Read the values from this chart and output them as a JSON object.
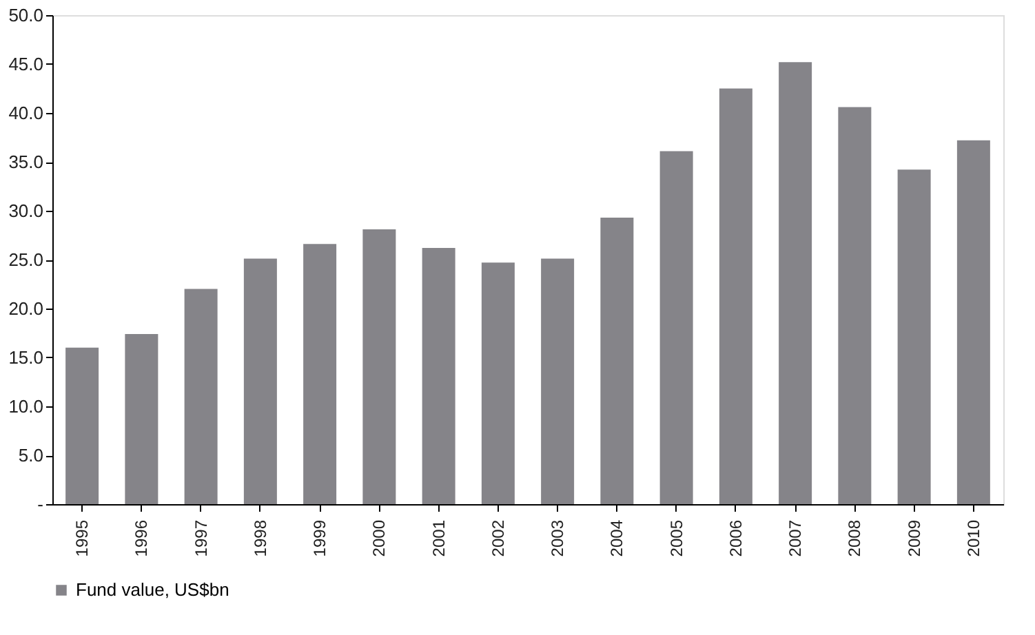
{
  "chart_data": {
    "type": "bar",
    "categories": [
      "1995",
      "1996",
      "1997",
      "1998",
      "1999",
      "2000",
      "2001",
      "2002",
      "2003",
      "2004",
      "2005",
      "2006",
      "2007",
      "2008",
      "2009",
      "2010"
    ],
    "series": [
      {
        "name": "Fund value, US$bn",
        "color": "#858489",
        "values": [
          16.0,
          17.4,
          22.0,
          25.1,
          26.6,
          28.1,
          26.2,
          24.7,
          25.1,
          29.3,
          36.1,
          42.5,
          45.2,
          40.6,
          34.2,
          37.2
        ]
      }
    ],
    "ylim": [
      0,
      50
    ],
    "yticks": [
      {
        "value": 0,
        "label": "-"
      },
      {
        "value": 5,
        "label": "5.0"
      },
      {
        "value": 10,
        "label": "10.0"
      },
      {
        "value": 15,
        "label": "15.0"
      },
      {
        "value": 20,
        "label": "20.0"
      },
      {
        "value": 25,
        "label": "25.0"
      },
      {
        "value": 30,
        "label": "30.0"
      },
      {
        "value": 35,
        "label": "35.0"
      },
      {
        "value": 40,
        "label": "40.0"
      },
      {
        "value": 45,
        "label": "45.0"
      },
      {
        "value": 50,
        "label": "50.0"
      }
    ],
    "grid": false,
    "legend": "bottom"
  }
}
